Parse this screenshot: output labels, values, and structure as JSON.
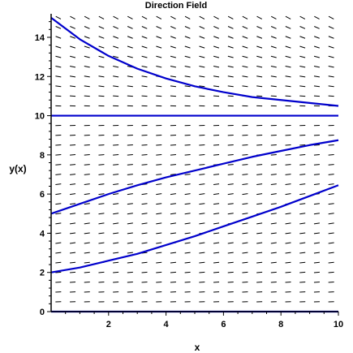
{
  "chart_data": {
    "type": "direction-field",
    "title": "Direction Field",
    "xlabel": "x",
    "ylabel": "y(x)",
    "xlim": [
      0,
      10
    ],
    "ylim": [
      0,
      15.2
    ],
    "x_ticks": [
      2,
      4,
      6,
      8,
      10
    ],
    "y_ticks": [
      0,
      2,
      4,
      6,
      8,
      10,
      12,
      14
    ],
    "equilibria": [
      0,
      10
    ],
    "arrow_color": "#000000",
    "curve_color": "#0000cc",
    "field_grid": {
      "x_step": 0.5,
      "y_step": 0.5
    },
    "field_slopes": [
      {
        "y": 0.5,
        "slope": 0.05
      },
      {
        "y": 1.0,
        "slope": 0.08
      },
      {
        "y": 1.5,
        "slope": 0.11
      },
      {
        "y": 2.0,
        "slope": 0.14
      },
      {
        "y": 2.5,
        "slope": 0.16
      },
      {
        "y": 3.0,
        "slope": 0.18
      },
      {
        "y": 3.5,
        "slope": 0.19
      },
      {
        "y": 4.0,
        "slope": 0.2
      },
      {
        "y": 4.5,
        "slope": 0.2
      },
      {
        "y": 5.0,
        "slope": 0.2
      },
      {
        "y": 5.5,
        "slope": 0.2
      },
      {
        "y": 6.0,
        "slope": 0.19
      },
      {
        "y": 6.5,
        "slope": 0.18
      },
      {
        "y": 7.0,
        "slope": 0.16
      },
      {
        "y": 7.5,
        "slope": 0.14
      },
      {
        "y": 8.0,
        "slope": 0.12
      },
      {
        "y": 8.5,
        "slope": 0.09
      },
      {
        "y": 9.0,
        "slope": 0.07
      },
      {
        "y": 9.5,
        "slope": 0.04
      },
      {
        "y": 10.0,
        "slope": 0.0
      },
      {
        "y": 10.5,
        "slope": -0.05
      },
      {
        "y": 11.0,
        "slope": -0.11
      },
      {
        "y": 11.5,
        "slope": -0.18
      },
      {
        "y": 12.0,
        "slope": -0.24
      },
      {
        "y": 12.5,
        "slope": -0.31
      },
      {
        "y": 13.0,
        "slope": -0.39
      },
      {
        "y": 13.5,
        "slope": -0.47
      },
      {
        "y": 14.0,
        "slope": -0.56
      },
      {
        "y": 14.5,
        "slope": -0.65
      },
      {
        "y": 15.0,
        "slope": -0.75
      }
    ],
    "series": [
      {
        "x": [
          0,
          1,
          2,
          3,
          4,
          5,
          6,
          7,
          8,
          9,
          10
        ],
        "y": [
          0,
          0,
          0,
          0,
          0,
          0,
          0,
          0,
          0,
          0,
          0
        ]
      },
      {
        "x": [
          0,
          1,
          2,
          3,
          4,
          5,
          6,
          7,
          8,
          9,
          10
        ],
        "y": [
          2.0,
          2.25,
          2.6,
          2.95,
          3.4,
          3.85,
          4.35,
          4.85,
          5.35,
          5.9,
          6.45
        ]
      },
      {
        "x": [
          0,
          1,
          2,
          3,
          4,
          5,
          6,
          7,
          8,
          9,
          10
        ],
        "y": [
          5.0,
          5.5,
          6.0,
          6.45,
          6.85,
          7.2,
          7.55,
          7.9,
          8.2,
          8.5,
          8.75
        ]
      },
      {
        "x": [
          0,
          1,
          2,
          3,
          4,
          5,
          6,
          7,
          8,
          9,
          10
        ],
        "y": [
          10,
          10,
          10,
          10,
          10,
          10,
          10,
          10,
          10,
          10,
          10
        ]
      },
      {
        "x": [
          0,
          1,
          2,
          3,
          4,
          5,
          6,
          7,
          8,
          9,
          10
        ],
        "y": [
          15.0,
          13.9,
          13.05,
          12.4,
          11.9,
          11.5,
          11.2,
          10.95,
          10.8,
          10.65,
          10.5
        ]
      }
    ]
  }
}
